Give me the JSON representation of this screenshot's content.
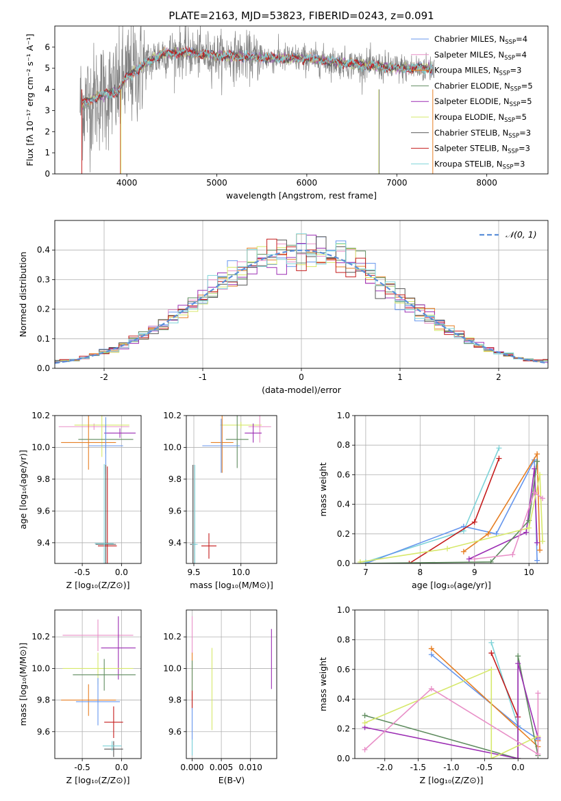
{
  "figure": {
    "title": "PLATE=2163, MJD=53823, FIBERID=0243, z=0.091",
    "series_colors": [
      "#6495ed",
      "#e88fc7",
      "#e67e22",
      "#5f8c5f",
      "#9b2cb3",
      "#d6e86a",
      "#555555",
      "#c41a1a",
      "#7dd3d8"
    ]
  },
  "chart_data": [
    {
      "id": "spectrum",
      "type": "line",
      "xlabel": "wavelength [Angstrom, rest frame]",
      "ylabel": "Flux [fλ 10⁻¹⁷ erg cm⁻² s⁻¹ A⁻¹]",
      "xlim": [
        3200,
        8680
      ],
      "ylim": [
        0,
        7
      ],
      "xticks": [
        4000,
        5000,
        6000,
        7000,
        8000
      ],
      "yticks": [
        0,
        1,
        2,
        3,
        4,
        5,
        6
      ],
      "grid": false,
      "legend_position": "right",
      "legend": [
        "Chabrier MILES, N_SSP=4",
        "Salpeter MILES, N_SSP=4",
        "Kroupa MILES, N_SSP=3",
        "Chabrier ELODIE, N_SSP=5",
        "Salpeter ELODIE, N_SSP=5",
        "Kroupa ELODIE, N_SSP=5",
        "Chabrier STELIB, N_SSP=3",
        "Salpeter STELIB, N_SSP=3",
        "Kroupa STELIB, N_SSP=3"
      ],
      "legend_colors": [
        "#6495ed",
        "#e88fc7",
        "#e67e22",
        "#5f8c5f",
        "#9b2cb3",
        "#d6e86a",
        "#555555",
        "#c41a1a",
        "#7dd3d8"
      ],
      "data_color": "#808080",
      "continuum": [
        [
          3500,
          3.3
        ],
        [
          3700,
          3.7
        ],
        [
          3900,
          3.9
        ],
        [
          4000,
          4.6
        ],
        [
          4200,
          5.2
        ],
        [
          4400,
          5.7
        ],
        [
          4600,
          5.75
        ],
        [
          5000,
          5.6
        ],
        [
          5500,
          5.5
        ],
        [
          6000,
          5.45
        ],
        [
          6500,
          5.2
        ],
        [
          7000,
          5.0
        ],
        [
          7400,
          5.0
        ]
      ],
      "data_range": [
        3480,
        7420
      ],
      "model_range": [
        3500,
        7400
      ],
      "vertical_spikes": [
        {
          "x": 3930,
          "color": "#c41a1a"
        },
        {
          "x": 3935,
          "color": "#d6e86a"
        },
        {
          "x": 6800,
          "color": "#d6e86a"
        },
        {
          "x": 6805,
          "color": "#808080"
        },
        {
          "x": 7400,
          "color": "#e67e22"
        },
        {
          "x": 3500,
          "color": "#c41a1a"
        }
      ]
    },
    {
      "id": "residual_hist",
      "type": "line",
      "xlabel": "(data-model)/error",
      "ylabel": "Normed distribution",
      "xlim": [
        -2.5,
        2.5
      ],
      "ylim": [
        0,
        0.5
      ],
      "xticks": [
        -2,
        -1,
        0,
        1,
        2
      ],
      "yticks": [
        0.0,
        0.1,
        0.2,
        0.3,
        0.4
      ],
      "grid": true,
      "legend": [
        "𝒩(0, 1)"
      ],
      "gaussian": {
        "mean": 0,
        "sigma": 1,
        "color": "#5b8fd9",
        "style": "dashed"
      },
      "bin_width": 0.1,
      "histogram_colors": [
        "#6495ed",
        "#e88fc7",
        "#e67e22",
        "#5f8c5f",
        "#9b2cb3",
        "#d6e86a",
        "#555555",
        "#c41a1a",
        "#7dd3d8"
      ]
    },
    {
      "id": "age_vs_Z",
      "type": "scatter",
      "xlabel": "Z [log₁₀(Z/Z⊙)]",
      "ylabel": "age  [log₁₀(age/yr)]",
      "xlim": [
        -0.85,
        0.25
      ],
      "ylim": [
        9.27,
        10.2
      ],
      "xticks": [
        -0.5,
        0.0
      ],
      "yticks": [
        9.4,
        9.6,
        9.8,
        10.0,
        10.2
      ],
      "grid": true,
      "crosses": [
        {
          "c": "#e88fc7",
          "x": -0.35,
          "y": 10.13,
          "xerr": 0.45,
          "yerr": 0.02
        },
        {
          "c": "#d6e86a",
          "x": -0.25,
          "y": 10.14,
          "xerr": 0.35,
          "yerr": 0.2
        },
        {
          "c": "#9b2cb3",
          "x": -0.02,
          "y": 10.09,
          "xerr": 0.2,
          "yerr": 0.03
        },
        {
          "c": "#5f8c5f",
          "x": -0.2,
          "y": 10.05,
          "xerr": 0.35,
          "yerr": 0.09
        },
        {
          "c": "#e67e22",
          "x": -0.42,
          "y": 10.03,
          "xerr": 0.35,
          "yerr": 0.17
        },
        {
          "c": "#6495ed",
          "x": -0.2,
          "y": 10.01,
          "xerr": 0.22,
          "yerr": 0.18
        },
        {
          "c": "#555555",
          "x": -0.2,
          "y": 9.39,
          "xerr": 0.13,
          "yerr": 0.5
        },
        {
          "c": "#c41a1a",
          "x": -0.18,
          "y": 9.38,
          "xerr": 0.12,
          "yerr": 0.5
        },
        {
          "c": "#7dd3d8",
          "x": -0.22,
          "y": 9.395,
          "xerr": 0.12,
          "yerr": 0.5
        }
      ]
    },
    {
      "id": "age_vs_mass",
      "type": "scatter",
      "xlabel": "mass [log₁₀(M/M⊙)]",
      "ylabel": "",
      "xlim": [
        9.42,
        10.38
      ],
      "ylim": [
        9.27,
        10.2
      ],
      "xticks": [
        9.5,
        10.0
      ],
      "yticks": [
        9.4,
        9.6,
        9.8,
        10.0,
        10.2
      ],
      "grid": true,
      "crosses": [
        {
          "c": "#d6e86a",
          "x": 10.0,
          "y": 10.14,
          "xerr": 0.22,
          "yerr": 0.02
        },
        {
          "c": "#e88fc7",
          "x": 10.2,
          "y": 10.13,
          "xerr": 0.12,
          "yerr": 0.1
        },
        {
          "c": "#9b2cb3",
          "x": 10.13,
          "y": 10.09,
          "xerr": 0.09,
          "yerr": 0.06
        },
        {
          "c": "#5f8c5f",
          "x": 9.96,
          "y": 10.05,
          "xerr": 0.12,
          "yerr": 0.18
        },
        {
          "c": "#e67e22",
          "x": 9.8,
          "y": 10.03,
          "xerr": 0.12,
          "yerr": 0.19
        },
        {
          "c": "#6495ed",
          "x": 9.79,
          "y": 10.01,
          "xerr": 0.2,
          "yerr": 0.17
        },
        {
          "c": "#555555",
          "x": 9.49,
          "y": 9.39,
          "xerr": 0.03,
          "yerr": 0.5
        },
        {
          "c": "#7dd3d8",
          "x": 9.51,
          "y": 9.39,
          "xerr": 0.03,
          "yerr": 0.5
        },
        {
          "c": "#c41a1a",
          "x": 9.66,
          "y": 9.38,
          "xerr": 0.08,
          "yerr": 0.08
        }
      ]
    },
    {
      "id": "weight_vs_age",
      "type": "line",
      "xlabel": "age  [log₁₀(age/yr)]",
      "ylabel": "mass weight",
      "xlim": [
        6.8,
        10.35
      ],
      "ylim": [
        0,
        1.0
      ],
      "xticks": [
        7,
        8,
        9,
        10
      ],
      "yticks": [
        0.0,
        0.2,
        0.4,
        0.6,
        0.8,
        1.0
      ],
      "grid": true,
      "series": [
        {
          "c": "#7dd3d8",
          "x": [
            7.0,
            8.8,
            9.45
          ],
          "y": [
            0.01,
            0.22,
            0.78
          ]
        },
        {
          "c": "#6495ed",
          "x": [
            7.0,
            8.8,
            9.4,
            10.1,
            10.15
          ],
          "y": [
            0.0,
            0.25,
            0.2,
            0.7,
            0.02
          ]
        },
        {
          "c": "#c41a1a",
          "x": [
            7.8,
            9.0,
            9.45
          ],
          "y": [
            0.0,
            0.28,
            0.71
          ]
        },
        {
          "c": "#e67e22",
          "x": [
            8.8,
            9.25,
            10.15,
            10.2
          ],
          "y": [
            0.08,
            0.2,
            0.74,
            0.09
          ]
        },
        {
          "c": "#9b2cb3",
          "x": [
            8.9,
            9.95,
            10.1,
            10.15
          ],
          "y": [
            0.03,
            0.21,
            0.64,
            0.14
          ]
        },
        {
          "c": "#5f8c5f",
          "x": [
            6.9,
            9.3,
            10.0,
            10.15
          ],
          "y": [
            0.0,
            0.01,
            0.29,
            0.69
          ]
        },
        {
          "c": "#d6e86a",
          "x": [
            6.9,
            8.5,
            10.0,
            10.2,
            10.25
          ],
          "y": [
            0.01,
            0.1,
            0.24,
            0.6,
            0.15
          ]
        },
        {
          "c": "#e88fc7",
          "x": [
            9.0,
            9.7,
            10.1,
            10.25
          ],
          "y": [
            0.03,
            0.06,
            0.48,
            0.44
          ]
        }
      ]
    },
    {
      "id": "mass_vs_Z",
      "type": "scatter",
      "xlabel": "Z [log₁₀(Z/Z⊙)]",
      "ylabel": "mass [log₁₀(M/M⊙)]",
      "xlim": [
        -0.85,
        0.25
      ],
      "ylim": [
        9.43,
        10.37
      ],
      "xticks": [
        -0.5,
        0.0
      ],
      "yticks": [
        9.6,
        9.8,
        10.0,
        10.2
      ],
      "grid": true,
      "crosses": [
        {
          "c": "#e88fc7",
          "x": -0.3,
          "y": 10.21,
          "xerr": 0.45,
          "yerr": 0.1
        },
        {
          "c": "#9b2cb3",
          "x": -0.04,
          "y": 10.13,
          "xerr": 0.22,
          "yerr": 0.2
        },
        {
          "c": "#d6e86a",
          "x": -0.3,
          "y": 10.0,
          "xerr": 0.45,
          "yerr": 0.1
        },
        {
          "c": "#5f8c5f",
          "x": -0.22,
          "y": 9.96,
          "xerr": 0.4,
          "yerr": 0.1
        },
        {
          "c": "#e67e22",
          "x": -0.42,
          "y": 9.8,
          "xerr": 0.35,
          "yerr": 0.1
        },
        {
          "c": "#6495ed",
          "x": -0.3,
          "y": 9.79,
          "xerr": 0.28,
          "yerr": 0.15
        },
        {
          "c": "#c41a1a",
          "x": -0.1,
          "y": 9.66,
          "xerr": 0.12,
          "yerr": 0.1
        },
        {
          "c": "#555555",
          "x": -0.1,
          "y": 9.49,
          "xerr": 0.12,
          "yerr": 0.05
        },
        {
          "c": "#7dd3d8",
          "x": -0.12,
          "y": 9.51,
          "xerr": 0.12,
          "yerr": 0.03
        }
      ]
    },
    {
      "id": "mass_vs_ebv",
      "type": "scatter",
      "xlabel": "E(B-V)",
      "ylabel": "",
      "xlim": [
        -0.001,
        0.0145
      ],
      "ylim": [
        9.43,
        10.37
      ],
      "xticks": [
        0.0,
        0.005,
        0.01
      ],
      "xtick_labels": [
        "0.000",
        "0.005",
        "0.010"
      ],
      "yticks": [
        9.6,
        9.8,
        10.0,
        10.2
      ],
      "grid": true,
      "crosses": [
        {
          "c": "#e88fc7",
          "x": 0.0,
          "y": 10.21,
          "xerr": 0,
          "yerr": 0.12
        },
        {
          "c": "#e67e22",
          "x": 0.0,
          "y": 9.95,
          "xerr": 0,
          "yerr": 0.15
        },
        {
          "c": "#5f8c5f",
          "x": 0.0,
          "y": 9.9,
          "xerr": 0,
          "yerr": 0.15
        },
        {
          "c": "#c41a1a",
          "x": 0.0,
          "y": 9.8,
          "xerr": 0,
          "yerr": 0.06
        },
        {
          "c": "#6495ed",
          "x": 0.0,
          "y": 9.6,
          "xerr": 0,
          "yerr": 0.15
        },
        {
          "c": "#7dd3d8",
          "x": 0.0,
          "y": 9.5,
          "xerr": 0,
          "yerr": 0.05
        },
        {
          "c": "#d6e86a",
          "x": 0.0034,
          "y": 9.87,
          "xerr": 0,
          "yerr": 0.26
        },
        {
          "c": "#9b2cb3",
          "x": 0.0136,
          "y": 10.06,
          "xerr": 0,
          "yerr": 0.19
        }
      ]
    },
    {
      "id": "weight_vs_Z",
      "type": "line",
      "xlabel": "Z [log₁₀(Z/Z⊙)]",
      "ylabel": "mass weight",
      "xlim": [
        -2.45,
        0.45
      ],
      "ylim": [
        0,
        1.0
      ],
      "xticks": [
        -2.0,
        -1.5,
        -1.0,
        -0.5,
        0.0
      ],
      "yticks": [
        0.0,
        0.2,
        0.4,
        0.6,
        0.8,
        1.0
      ],
      "grid": true,
      "series": [
        {
          "c": "#6495ed",
          "x": [
            -1.3,
            0.0,
            0.3
          ],
          "y": [
            0.7,
            0.22,
            0.13
          ]
        },
        {
          "c": "#e67e22",
          "x": [
            -1.3,
            0.3,
            0.3
          ],
          "y": [
            0.74,
            0.08,
            0.12
          ]
        },
        {
          "c": "#7dd3d8",
          "x": [
            -0.4,
            0.0,
            0.0
          ],
          "y": [
            0.78,
            0.22,
            0.0
          ]
        },
        {
          "c": "#c41a1a",
          "x": [
            -0.4,
            0.0,
            0.0
          ],
          "y": [
            0.71,
            0.28,
            0.0
          ]
        },
        {
          "c": "#5f8c5f",
          "x": [
            -2.3,
            0.0,
            0.0,
            0.3
          ],
          "y": [
            0.29,
            0.0,
            0.69,
            0.02
          ]
        },
        {
          "c": "#9b2cb3",
          "x": [
            -2.3,
            0.0,
            0.0,
            0.3
          ],
          "y": [
            0.21,
            0.0,
            0.64,
            0.14
          ]
        },
        {
          "c": "#d6e86a",
          "x": [
            -2.3,
            -0.4,
            -0.4,
            0.3
          ],
          "y": [
            0.24,
            0.6,
            0.0,
            0.15
          ]
        },
        {
          "c": "#e88fc7",
          "x": [
            -2.3,
            -1.3,
            0.3,
            0.3
          ],
          "y": [
            0.06,
            0.47,
            0.03,
            0.44
          ]
        }
      ]
    }
  ]
}
